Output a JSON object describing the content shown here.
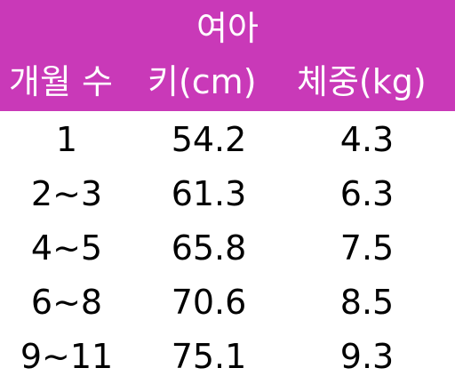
{
  "header": {
    "title": "여아",
    "col_month": "개월 수",
    "col_height": "키(cm)",
    "col_weight": "체중(kg)"
  },
  "rows": [
    {
      "month": "1",
      "height": "54.2",
      "weight": "4.3"
    },
    {
      "month": "2~3",
      "height": "61.3",
      "weight": "6.3"
    },
    {
      "month": "4~5",
      "height": "65.8",
      "weight": "7.5"
    },
    {
      "month": "6~8",
      "height": "70.6",
      "weight": "8.5"
    },
    {
      "month": "9~11",
      "height": "75.1",
      "weight": "9.3"
    }
  ],
  "colors": {
    "header_bg": "#c939b8",
    "header_text": "#ffffff",
    "body_text": "#000000"
  }
}
